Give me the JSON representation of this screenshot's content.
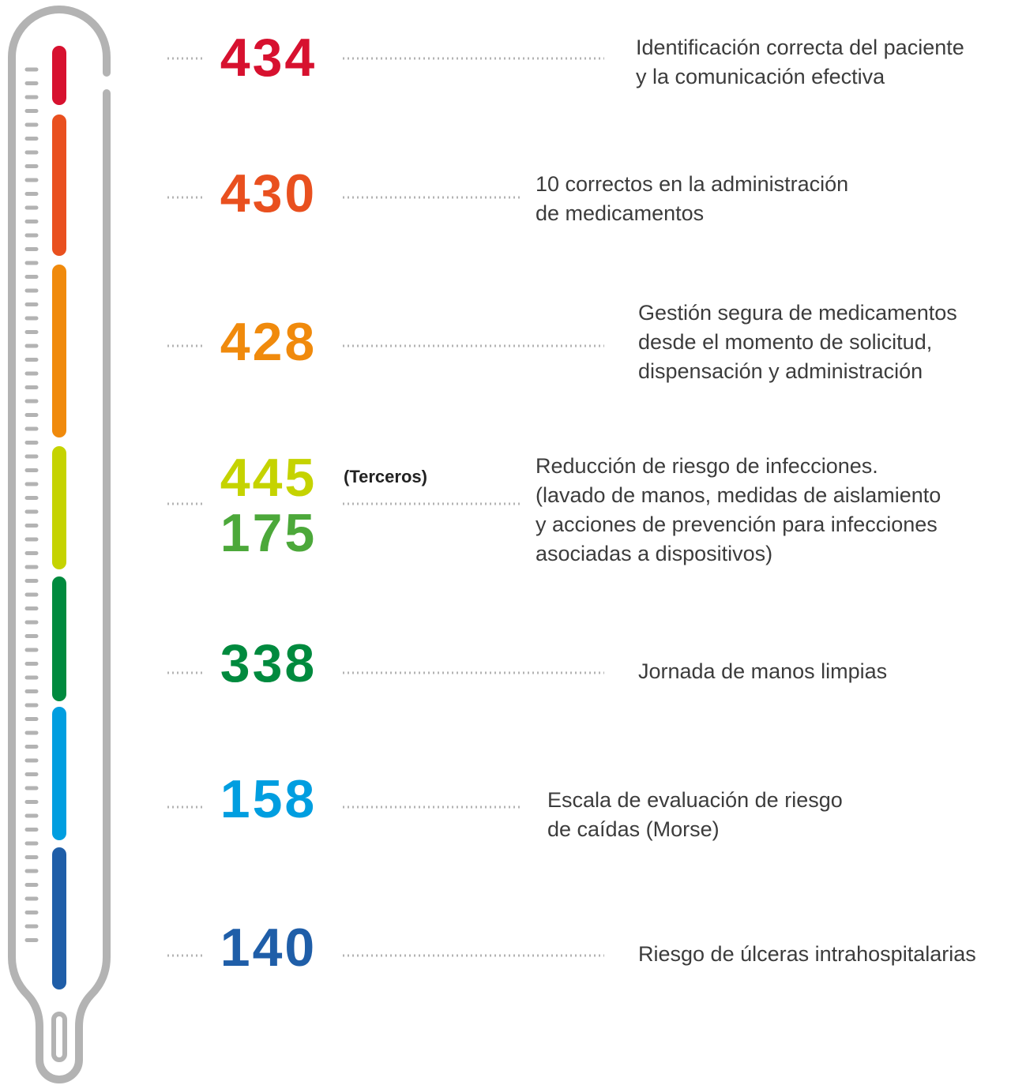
{
  "items": [
    {
      "numbers": [
        434
      ],
      "colors": [
        "#d7112f"
      ],
      "lines": [
        "Identificación correcta del paciente",
        "y la comunicación efectiva"
      ]
    },
    {
      "numbers": [
        430
      ],
      "colors": [
        "#e9501f"
      ],
      "lines": [
        "10 correctos en la administración",
        "de medicamentos"
      ]
    },
    {
      "numbers": [
        428
      ],
      "colors": [
        "#f08a0c"
      ],
      "lines": [
        "Gestión segura de medicamentos",
        "desde el momento de solicitud,",
        "dispensación y administración"
      ]
    },
    {
      "numbers": [
        445,
        175
      ],
      "colors": [
        "#c5d300",
        "#4ca83a"
      ],
      "note": "(Terceros)",
      "lines": [
        "Reducción de riesgo de infecciones.",
        "(lavado de manos, medidas de aislamiento",
        "y acciones de prevención para infecciones",
        "asociadas a dispositivos)"
      ]
    },
    {
      "numbers": [
        338
      ],
      "colors": [
        "#008a3e"
      ],
      "lines": [
        "Jornada de manos limpias"
      ]
    },
    {
      "numbers": [
        158
      ],
      "colors": [
        "#009ee0"
      ],
      "lines": [
        "Escala de evaluación de riesgo",
        "de caídas (Morse)"
      ]
    },
    {
      "numbers": [
        140
      ],
      "colors": [
        "#1f5ea8"
      ],
      "lines": [
        "Riesgo de úlceras intrahospitalarias"
      ]
    }
  ]
}
